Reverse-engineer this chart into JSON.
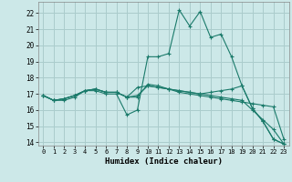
{
  "title": "",
  "xlabel": "Humidex (Indice chaleur)",
  "bg_color": "#cce8e8",
  "grid_color": "#aacccc",
  "line_color": "#1a7a6a",
  "xlim": [
    -0.5,
    23.5
  ],
  "ylim": [
    13.8,
    22.7
  ],
  "xticks": [
    0,
    1,
    2,
    3,
    4,
    5,
    6,
    7,
    8,
    9,
    10,
    11,
    12,
    13,
    14,
    15,
    16,
    17,
    18,
    19,
    20,
    21,
    22,
    23
  ],
  "yticks": [
    14,
    15,
    16,
    17,
    18,
    19,
    20,
    21,
    22
  ],
  "series": [
    [
      16.9,
      16.6,
      16.6,
      16.8,
      17.2,
      17.2,
      17.0,
      17.0,
      15.7,
      16.0,
      19.3,
      19.3,
      19.5,
      22.2,
      21.2,
      22.1,
      20.5,
      20.7,
      19.3,
      17.5,
      16.1,
      15.3,
      14.2,
      13.9
    ],
    [
      16.9,
      16.6,
      16.7,
      16.9,
      17.2,
      17.3,
      17.1,
      17.1,
      16.8,
      17.4,
      17.5,
      17.4,
      17.3,
      17.2,
      17.1,
      17.0,
      17.1,
      17.2,
      17.3,
      17.5,
      16.1,
      15.3,
      14.2,
      13.9
    ],
    [
      16.9,
      16.6,
      16.7,
      16.9,
      17.2,
      17.3,
      17.1,
      17.1,
      16.8,
      16.8,
      17.6,
      17.5,
      17.3,
      17.1,
      17.0,
      16.9,
      16.8,
      16.7,
      16.6,
      16.5,
      16.4,
      16.3,
      16.2,
      14.2
    ],
    [
      16.9,
      16.6,
      16.7,
      16.9,
      17.2,
      17.3,
      17.1,
      17.1,
      16.8,
      16.9,
      17.5,
      17.4,
      17.3,
      17.2,
      17.1,
      17.0,
      16.9,
      16.8,
      16.7,
      16.6,
      16.0,
      15.4,
      14.8,
      13.9
    ]
  ]
}
